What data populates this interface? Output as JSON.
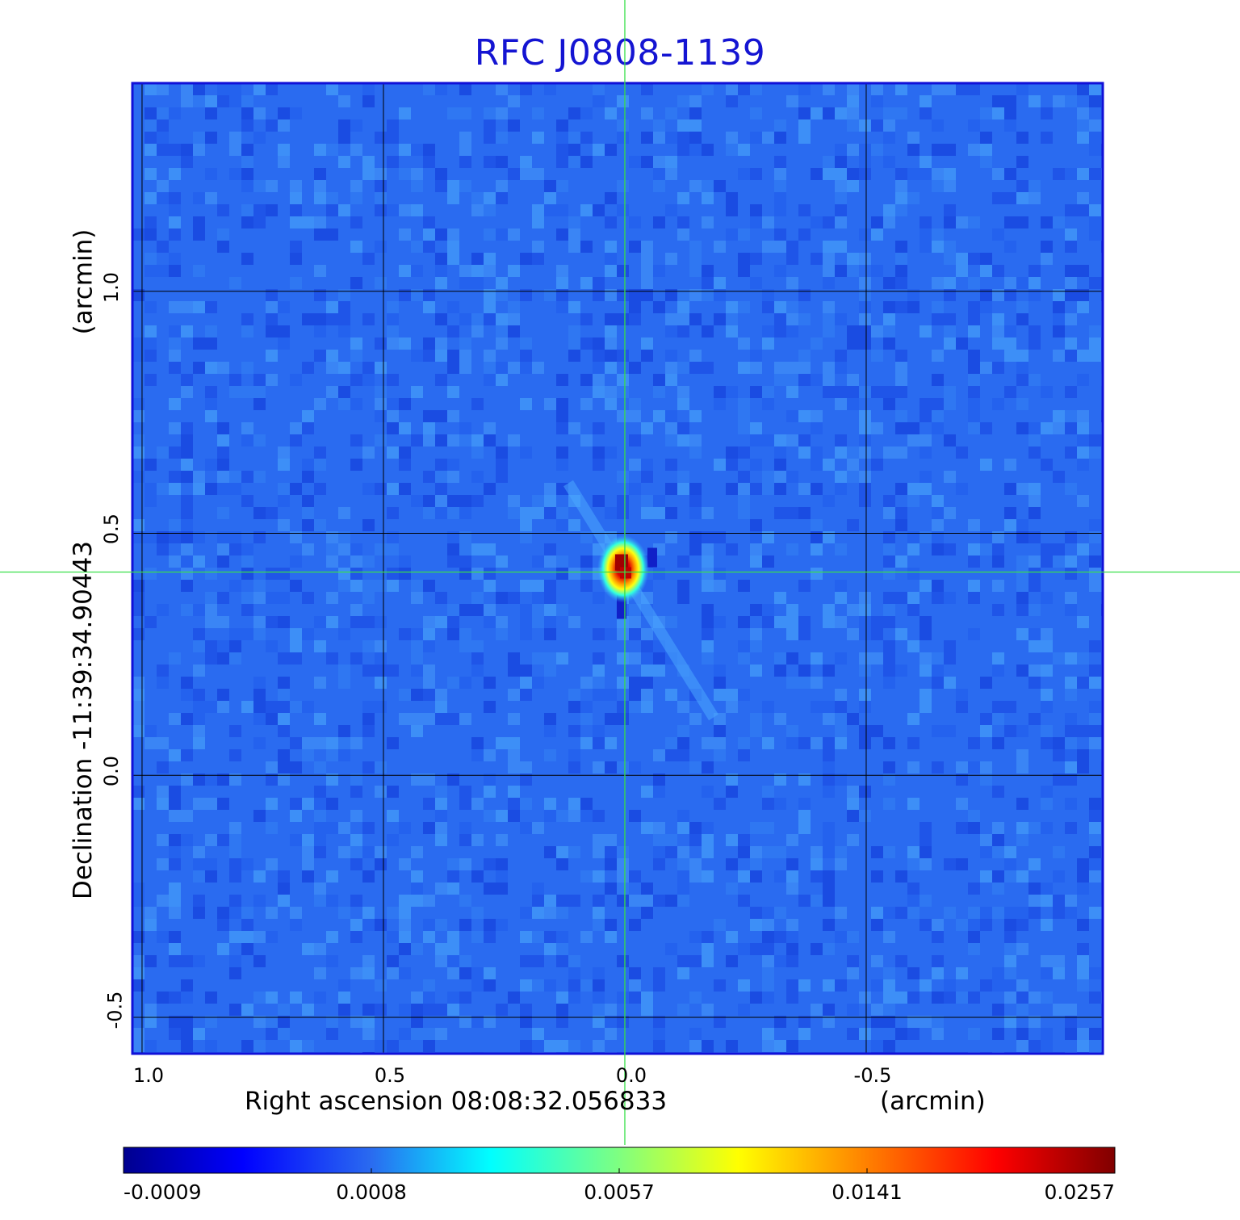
{
  "chart_data": {
    "type": "heatmap",
    "title": "RFC J0808-1139",
    "xlabel": "Right ascension  08:08:32.056833",
    "xunit": "(arcmin)",
    "ylabel": "Declination  -11:39:34.90443",
    "yunit": "(arcmin)",
    "x_ticks": [
      "1.0",
      "0.5",
      "0.0",
      "-0.5"
    ],
    "x_tick_values": [
      1.0,
      0.5,
      0.0,
      -0.5
    ],
    "y_ticks": [
      "1.0",
      "0.5",
      "0.0",
      "-0.5"
    ],
    "y_tick_values": [
      1.0,
      0.5,
      0.0,
      -0.5
    ],
    "xlim": [
      1.02,
      -0.99
    ],
    "ylim": [
      -0.575,
      1.43
    ],
    "grid": true,
    "crosshair": {
      "x": 0.0,
      "y": 0.42
    },
    "source_peak": {
      "x": 0.0,
      "y": 0.42,
      "value": 0.0257
    },
    "colormap": "jet",
    "colorbar": {
      "labels": [
        "-0.0009",
        "0.0008",
        "0.0057",
        "0.0141",
        "0.0257"
      ],
      "values": [
        -0.0009,
        0.0008,
        0.0057,
        0.0141,
        0.0257
      ],
      "placement": "bottom"
    }
  },
  "colors": {
    "title": "#1414d2",
    "crosshair": "#39e04a",
    "grid": "#000000",
    "frame": "#1010d8",
    "background_map": "#2a6bf0"
  }
}
